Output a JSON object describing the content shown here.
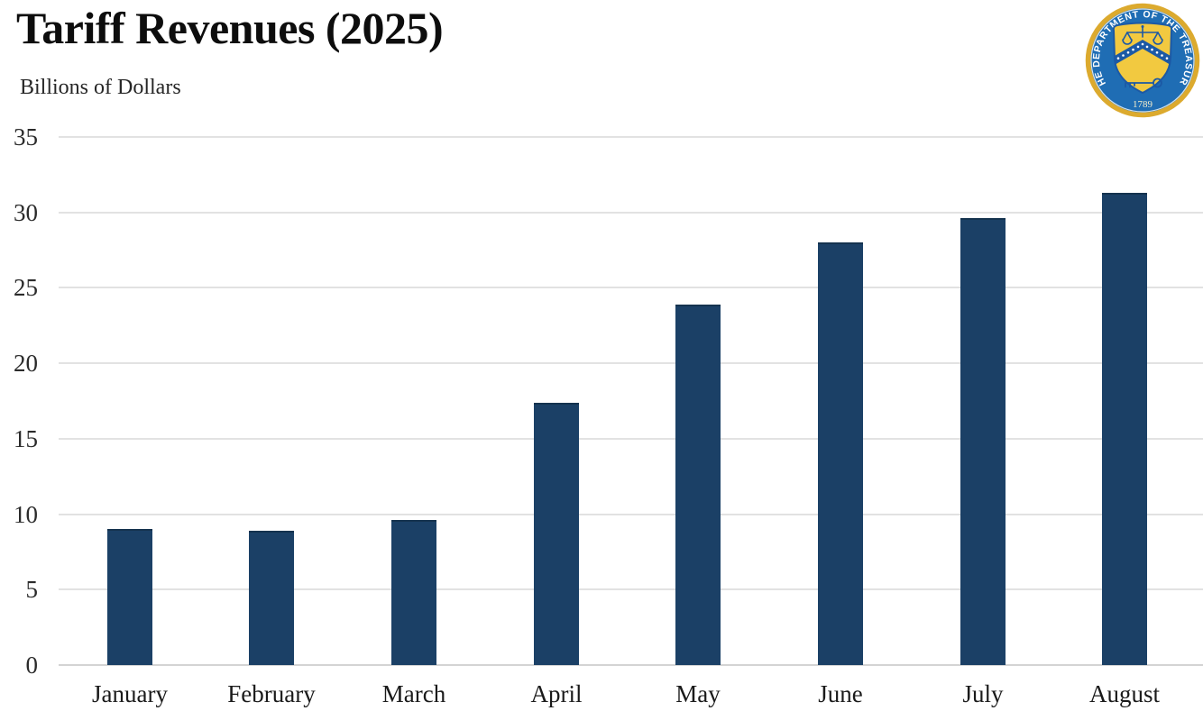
{
  "header": {
    "title": "Tariff Revenues (2025)",
    "subtitle": "Billions of Dollars"
  },
  "seal": {
    "ring_text": "THE DEPARTMENT OF THE TREASURY",
    "year": "1789"
  },
  "colors": {
    "bar": "#1b4066",
    "gridline": "#e2e2e2",
    "baseline": "#d4d4d4",
    "seal_field_blue": "#1f6db4",
    "seal_ring_gold": "#dcaa2e",
    "seal_shield_gold": "#f2c940",
    "seal_emblem_blue": "#1c59a5"
  },
  "chart_data": {
    "type": "bar",
    "title": "Tariff Revenues (2025)",
    "ylabel": "Billions of Dollars",
    "xlabel": "",
    "categories": [
      "January",
      "February",
      "March",
      "April",
      "May",
      "June",
      "July",
      "August"
    ],
    "values": [
      9.0,
      8.9,
      9.6,
      17.4,
      23.9,
      28.0,
      29.6,
      31.3
    ],
    "y_ticks": [
      0,
      5,
      10,
      15,
      20,
      25,
      30,
      35
    ],
    "ylim": [
      0,
      35
    ],
    "grid": true,
    "legend": false,
    "bar_color": "#1b4066"
  }
}
